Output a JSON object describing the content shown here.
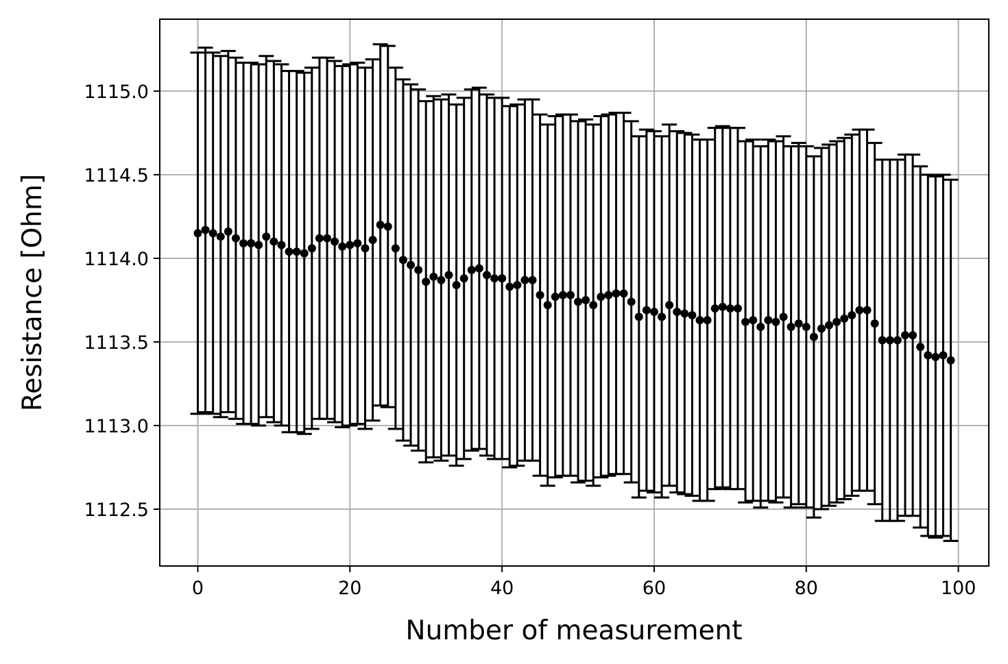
{
  "chart_data": {
    "type": "scatter",
    "title": "",
    "xlabel": "Number of measurement",
    "ylabel": "Resistance [Ohm]",
    "xlim": [
      -5,
      104
    ],
    "ylim": [
      1112.16,
      1115.43
    ],
    "xticks": [
      0,
      20,
      40,
      60,
      80,
      100
    ],
    "xtick_labels": [
      "0",
      "20",
      "40",
      "60",
      "80",
      "100"
    ],
    "yticks": [
      1112.5,
      1113.0,
      1113.5,
      1114.0,
      1114.5,
      1115.0
    ],
    "ytick_labels": [
      "1112.5",
      "1113.0",
      "1113.5",
      "1114.0",
      "1114.5",
      "1115.0"
    ],
    "grid": true,
    "legend": "none",
    "marker_color": "#000000",
    "grid_color": "#b0b0b0",
    "series": [
      {
        "x": [
          0,
          1,
          2,
          3,
          4,
          5,
          6,
          7,
          8,
          9,
          10,
          11,
          12,
          13,
          14,
          15,
          16,
          17,
          18,
          19,
          20,
          21,
          22,
          23,
          24,
          25,
          26,
          27,
          28,
          29,
          30,
          31,
          32,
          33,
          34,
          35,
          36,
          37,
          38,
          39,
          40,
          41,
          42,
          43,
          44,
          45,
          46,
          47,
          48,
          49,
          50,
          51,
          52,
          53,
          54,
          55,
          56,
          57,
          58,
          59,
          60,
          61,
          62,
          63,
          64,
          65,
          66,
          67,
          68,
          69,
          70,
          71,
          72,
          73,
          74,
          75,
          76,
          77,
          78,
          79,
          80,
          81,
          82,
          83,
          84,
          85,
          86,
          87,
          88,
          89,
          90,
          91,
          92,
          93,
          94,
          95,
          96,
          97,
          98,
          99
        ],
        "y": [
          1114.15,
          1114.17,
          1114.15,
          1114.13,
          1114.16,
          1114.12,
          1114.09,
          1114.09,
          1114.08,
          1114.13,
          1114.1,
          1114.08,
          1114.04,
          1114.04,
          1114.03,
          1114.06,
          1114.12,
          1114.12,
          1114.1,
          1114.07,
          1114.08,
          1114.09,
          1114.06,
          1114.11,
          1114.2,
          1114.19,
          1114.06,
          1113.99,
          1113.96,
          1113.93,
          1113.86,
          1113.89,
          1113.87,
          1113.9,
          1113.84,
          1113.88,
          1113.93,
          1113.94,
          1113.9,
          1113.88,
          1113.88,
          1113.83,
          1113.84,
          1113.87,
          1113.87,
          1113.78,
          1113.72,
          1113.77,
          1113.78,
          1113.78,
          1113.74,
          1113.75,
          1113.72,
          1113.77,
          1113.78,
          1113.79,
          1113.79,
          1113.74,
          1113.65,
          1113.69,
          1113.68,
          1113.65,
          1113.72,
          1113.68,
          1113.67,
          1113.66,
          1113.63,
          1113.63,
          1113.7,
          1113.71,
          1113.7,
          1113.7,
          1113.62,
          1113.63,
          1113.59,
          1113.63,
          1113.62,
          1113.65,
          1113.59,
          1113.61,
          1113.59,
          1113.53,
          1113.58,
          1113.6,
          1113.62,
          1113.64,
          1113.66,
          1113.69,
          1113.69,
          1113.61,
          1113.51,
          1113.51,
          1113.51,
          1113.54,
          1113.54,
          1113.47,
          1113.42,
          1113.41,
          1113.42,
          1113.39
        ],
        "yerr": [
          1.08,
          1.09,
          1.08,
          1.08,
          1.08,
          1.08,
          1.08,
          1.08,
          1.08,
          1.08,
          1.08,
          1.08,
          1.08,
          1.08,
          1.08,
          1.08,
          1.08,
          1.08,
          1.08,
          1.08,
          1.08,
          1.08,
          1.08,
          1.08,
          1.08,
          1.08,
          1.08,
          1.08,
          1.08,
          1.08,
          1.08,
          1.08,
          1.08,
          1.08,
          1.08,
          1.08,
          1.08,
          1.08,
          1.08,
          1.08,
          1.08,
          1.08,
          1.08,
          1.08,
          1.08,
          1.08,
          1.08,
          1.08,
          1.08,
          1.08,
          1.08,
          1.08,
          1.08,
          1.08,
          1.08,
          1.08,
          1.08,
          1.08,
          1.08,
          1.08,
          1.08,
          1.08,
          1.08,
          1.08,
          1.08,
          1.08,
          1.08,
          1.08,
          1.08,
          1.08,
          1.08,
          1.08,
          1.08,
          1.08,
          1.08,
          1.08,
          1.08,
          1.08,
          1.08,
          1.08,
          1.08,
          1.08,
          1.08,
          1.08,
          1.08,
          1.08,
          1.08,
          1.08,
          1.08,
          1.08,
          1.08,
          1.08,
          1.08,
          1.08,
          1.08,
          1.08,
          1.08,
          1.08,
          1.08,
          1.08
        ]
      }
    ]
  }
}
